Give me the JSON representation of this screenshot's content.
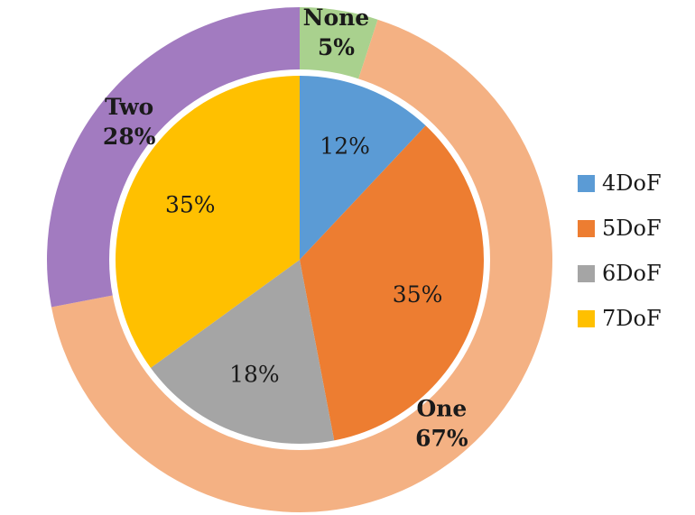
{
  "chart_data": {
    "type": "pie",
    "variant": "nested-donut",
    "inner": {
      "legend_position": "right",
      "slices": [
        {
          "name": "4DoF",
          "value": 12,
          "label": "12%",
          "color": "#5B9BD5"
        },
        {
          "name": "5DoF",
          "value": 35,
          "label": "35%",
          "color": "#ED7D31"
        },
        {
          "name": "6DoF",
          "value": 18,
          "label": "18%",
          "color": "#A5A5A5"
        },
        {
          "name": "7DoF",
          "value": 35,
          "label": "35%",
          "color": "#FFC000"
        }
      ]
    },
    "outer": {
      "slices": [
        {
          "name": "None",
          "value": 5,
          "label": "5%",
          "color": "#A9D18E"
        },
        {
          "name": "One",
          "value": 67,
          "label": "67%",
          "color": "#F4B183"
        },
        {
          "name": "Two",
          "value": 28,
          "label": "28%",
          "color": "#A27BC0"
        }
      ]
    }
  }
}
